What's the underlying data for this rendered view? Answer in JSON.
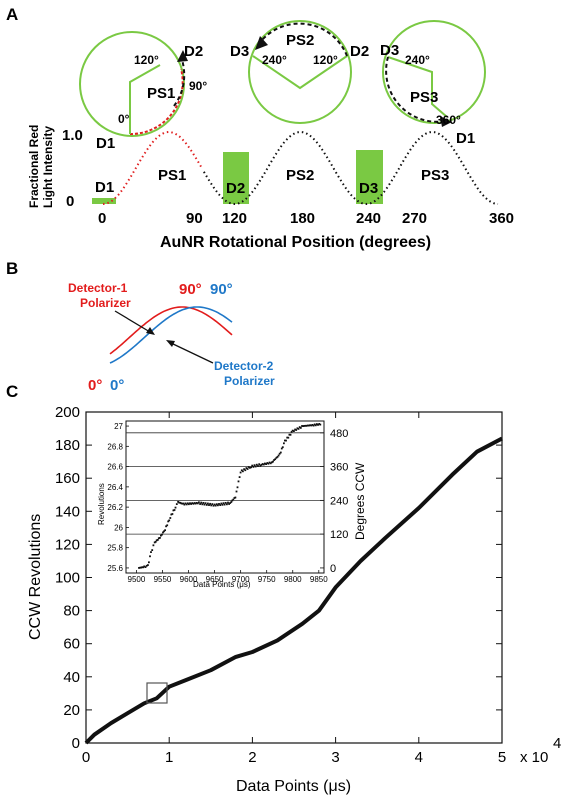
{
  "figure": {
    "panel_a_label": "A",
    "panel_b_label": "B",
    "panel_c_label": "C"
  },
  "panel_a": {
    "circles": [
      {
        "labels": {
          "d2": "D2",
          "a120": "120°",
          "a90": "90°",
          "ps": "PS1",
          "a0": "0°",
          "d1": "D1"
        }
      },
      {
        "labels": {
          "d3": "D3",
          "ps": "PS2",
          "d2": "D2",
          "a240": "240°",
          "a120": "120°"
        }
      },
      {
        "labels": {
          "d3": "D3",
          "a240": "240°",
          "ps": "PS3",
          "a360": "360°",
          "d1": "D1"
        }
      }
    ],
    "ylabel_line1": "Fractional Red",
    "ylabel_line2": "Light Intensity",
    "y_ticks": [
      "1.0",
      "0"
    ],
    "x_ticks": [
      "0",
      "90",
      "120",
      "180",
      "240",
      "270",
      "360"
    ],
    "xlabel": "AuNR Rotational Position (degrees)",
    "regions": [
      "D1",
      "PS1",
      "D2",
      "PS2",
      "D3",
      "PS3"
    ],
    "colors": {
      "green": "#7ac943",
      "red": "#e02020"
    }
  },
  "panel_b": {
    "det1_line1": "Detector-1",
    "det1_line2": "Polarizer",
    "det2_line1": "Detector-2",
    "det2_line2": "Polarizer",
    "red_90": "90°",
    "blue_90": "90°",
    "red_0": "0°",
    "blue_0": "0°",
    "colors": {
      "red": "#e21c1c",
      "blue": "#1f78c8"
    }
  },
  "chart_data": [
    {
      "type": "line",
      "xlabel": "Data Points (μs)",
      "ylabel": "CCW Revolutions",
      "x_multiplier": "x 10",
      "x_multiplier_exp": "4",
      "xlim": [
        0,
        5
      ],
      "ylim": [
        0,
        200
      ],
      "x_ticks": [
        "0",
        "1",
        "2",
        "3",
        "4",
        "5"
      ],
      "y_ticks": [
        "0",
        "20",
        "40",
        "60",
        "80",
        "100",
        "120",
        "140",
        "160",
        "180",
        "200"
      ],
      "series": [
        {
          "x": [
            0,
            0.1,
            0.3,
            0.5,
            0.7,
            0.85,
            1.0,
            1.2,
            1.5,
            1.8,
            2.0,
            2.3,
            2.6,
            2.8,
            3.0,
            3.3,
            3.6,
            4.0,
            4.4,
            4.7,
            5.0
          ],
          "values": [
            0,
            5,
            12,
            18,
            24,
            27,
            34,
            38,
            44,
            52,
            55,
            62,
            72,
            80,
            94,
            110,
            124,
            142,
            162,
            176,
            184
          ]
        }
      ]
    },
    {
      "type": "scatter",
      "xlabel": "Data Points (μs)",
      "ylabel": "Revolutions",
      "y2label": "Degrees CCW",
      "xlim": [
        9480,
        9860
      ],
      "ylim": [
        25.55,
        27.05
      ],
      "x_ticks": [
        "9500",
        "9550",
        "9600",
        "9650",
        "9700",
        "9750",
        "9800",
        "9850"
      ],
      "y_ticks": [
        "25.6",
        "25.8",
        "26",
        "26.2",
        "26.4",
        "26.6",
        "26.8",
        "27"
      ],
      "y2_ticks": [
        "0",
        "120",
        "240",
        "360",
        "480"
      ],
      "series": [
        {
          "x": [
            9505,
            9515,
            9522,
            9528,
            9535,
            9545,
            9555,
            9565,
            9575,
            9580,
            9590,
            9620,
            9650,
            9680,
            9690,
            9700,
            9720,
            9740,
            9760,
            9775,
            9785,
            9800,
            9820,
            9840,
            9855
          ],
          "values": [
            25.6,
            25.61,
            25.62,
            25.75,
            25.85,
            25.9,
            25.98,
            26.1,
            26.2,
            26.25,
            26.23,
            26.24,
            26.22,
            26.24,
            26.3,
            26.55,
            26.6,
            26.62,
            26.64,
            26.72,
            26.85,
            26.95,
            27.0,
            27.01,
            27.02
          ]
        }
      ]
    }
  ]
}
